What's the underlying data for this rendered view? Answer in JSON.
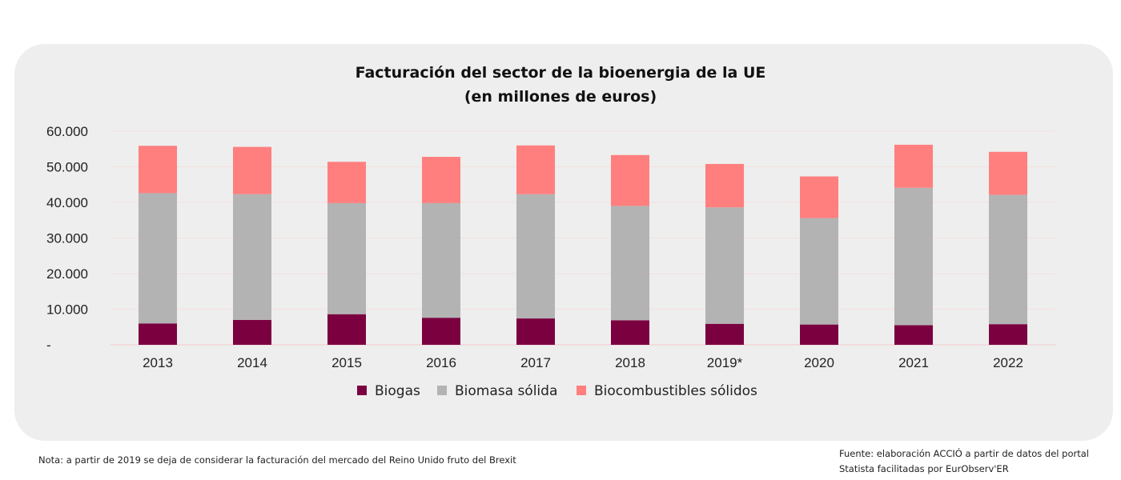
{
  "chart_data": {
    "type": "bar",
    "stacked": true,
    "title": "Facturación del sector de la bioenergia de la UE",
    "subtitle": "(en millones de euros)",
    "xlabel": "",
    "ylabel": "",
    "categories": [
      "2013",
      "2014",
      "2015",
      "2016",
      "2017",
      "2018",
      "2019*",
      "2020",
      "2021",
      "2022"
    ],
    "series": [
      {
        "name": "Biogas",
        "color": "#7b0040",
        "values": [
          6000,
          7000,
          8600,
          7600,
          7400,
          6900,
          5900,
          5700,
          5500,
          5800
        ]
      },
      {
        "name": "Biomasa sólida",
        "color": "#b3b3b3",
        "values": [
          36600,
          35300,
          31200,
          32200,
          34900,
          32100,
          32700,
          29900,
          38600,
          36300
        ]
      },
      {
        "name": "Biocombustibles sólidos",
        "color": "#ff7f7f",
        "values": [
          13300,
          13300,
          11600,
          13000,
          13700,
          14300,
          12200,
          11700,
          12100,
          12100
        ]
      }
    ],
    "ylim": [
      0,
      60000
    ],
    "yticks": [
      0,
      10000,
      20000,
      30000,
      40000,
      50000,
      60000
    ],
    "ytick_labels": [
      "-",
      "10.000",
      "20.000",
      "30.000",
      "40.000",
      "50.000",
      "60.000"
    ],
    "grid": true,
    "legend": "bottom"
  },
  "footer": {
    "note": "Nota: a partir de 2019 se deja de considerar la facturación del mercado del Reino Unido fruto del Brexit",
    "source_line1": "Fuente: elaboración ACCIÓ a partir de datos del portal",
    "source_line2": "Statista facilitadas por EurObserv'ER"
  }
}
